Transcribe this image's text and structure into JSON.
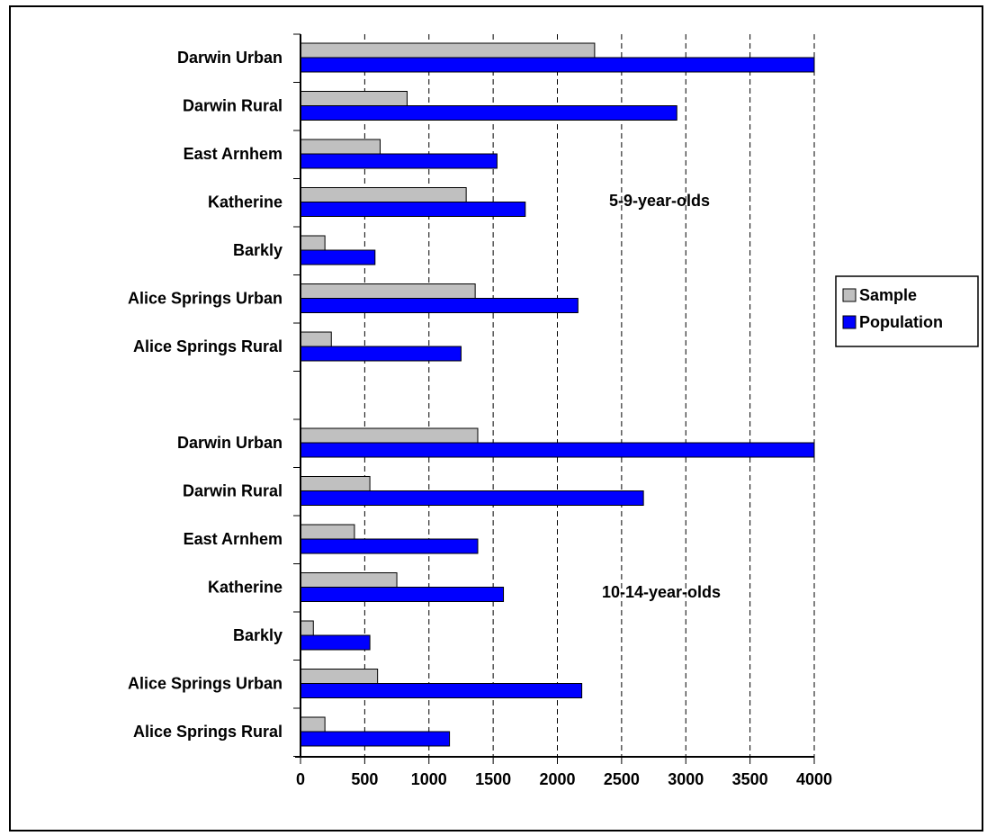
{
  "chart_data": {
    "type": "bar",
    "orientation": "horizontal",
    "xlim": [
      0,
      4000
    ],
    "x_ticks": [
      "0",
      "500",
      "1000",
      "1500",
      "2000",
      "2500",
      "3000",
      "3500",
      "4000"
    ],
    "grid": "vertical dashed",
    "legend_position": "right",
    "groups": [
      {
        "label": "5-9-year-olds",
        "categories": [
          "Darwin Urban",
          "Darwin Rural",
          "East Arnhem",
          "Katherine",
          "Barkly",
          "Alice Springs Urban",
          "Alice Springs Rural"
        ],
        "series": [
          {
            "name": "Sample",
            "color": "#c0c0c0",
            "values": [
              2290,
              830,
              620,
              1290,
              190,
              1360,
              240
            ]
          },
          {
            "name": "Population",
            "color": "#0000ff",
            "values": [
              4100,
              2930,
              1530,
              1750,
              580,
              2160,
              1250
            ]
          }
        ]
      },
      {
        "label": "10-14-year-olds",
        "categories": [
          "Darwin Urban",
          "Darwin Rural",
          "East Arnhem",
          "Katherine",
          "Barkly",
          "Alice Springs Urban",
          "Alice Springs Rural"
        ],
        "series": [
          {
            "name": "Sample",
            "color": "#c0c0c0",
            "values": [
              1380,
              540,
              420,
              750,
              100,
              600,
              190
            ]
          },
          {
            "name": "Population",
            "color": "#0000ff",
            "values": [
              4100,
              2670,
              1380,
              1580,
              540,
              2190,
              1160
            ]
          }
        ]
      }
    ],
    "legend": [
      {
        "name": "Sample",
        "color": "#c0c0c0"
      },
      {
        "name": "Population",
        "color": "#0000ff"
      }
    ]
  }
}
